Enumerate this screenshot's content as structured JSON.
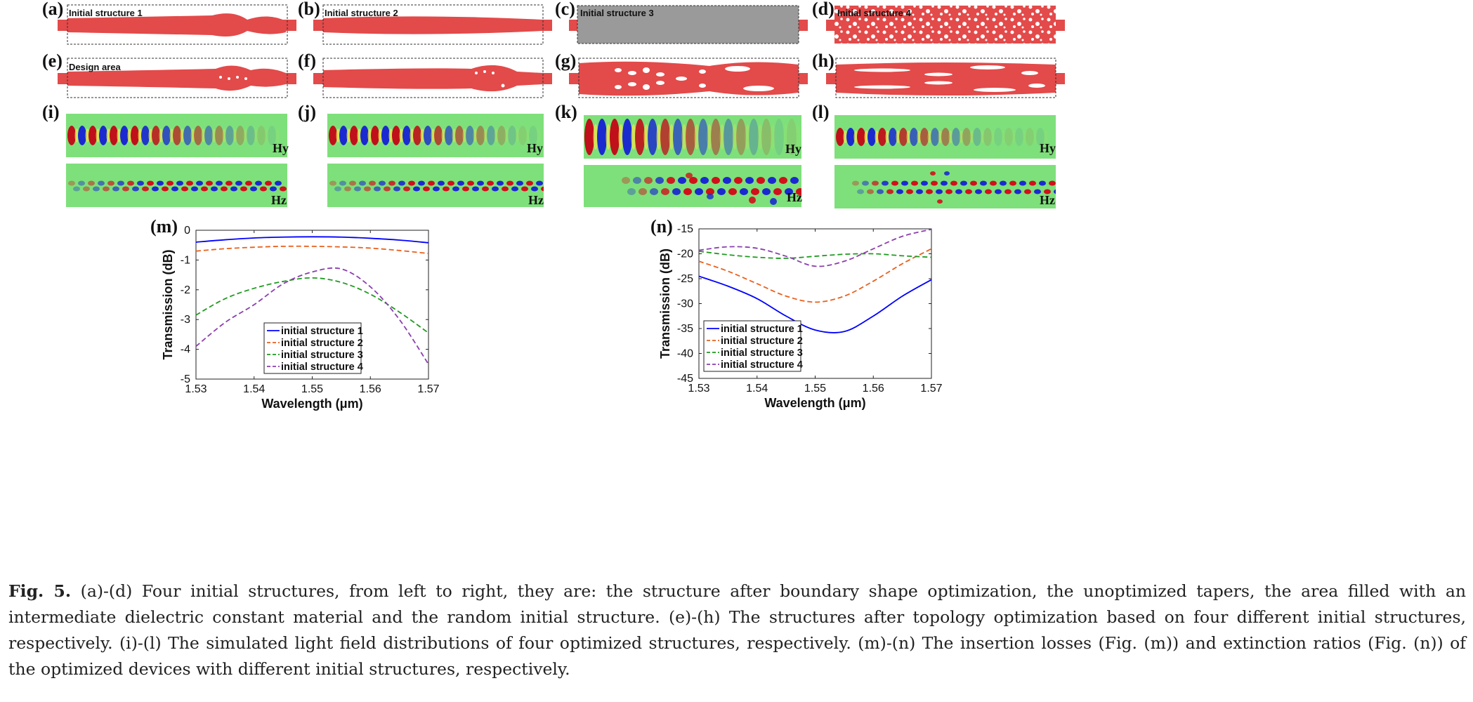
{
  "panels": {
    "a": "(a)",
    "b": "(b)",
    "c": "(c)",
    "d": "(d)",
    "e": "(e)",
    "f": "(f)",
    "g": "(g)",
    "h": "(h)",
    "i": "(i)",
    "j": "(j)",
    "k": "(k)",
    "l": "(l)",
    "m": "(m)",
    "n": "(n)"
  },
  "box_labels": {
    "s1": "Initial structure 1",
    "s2": "Initial structure 2",
    "s3": "Initial structure 3",
    "s4": "Initial structure 4",
    "design": "Design area"
  },
  "field_labels": {
    "hy": "Hy",
    "hz": "Hz"
  },
  "colors": {
    "structure": "#e34a4a",
    "gray_fill": "#9a9a9a",
    "field_bg": "#7ee07a",
    "s1": "#0000ff",
    "s2": "#e8601c",
    "s3": "#1f9a1f",
    "s4": "#8b3fae"
  },
  "chart_data": [
    {
      "type": "line",
      "panel": "(m)",
      "xlabel": "Wavelength (μm)",
      "ylabel": "Transmission (dB)",
      "xlim": [
        1.53,
        1.57
      ],
      "ylim": [
        -5,
        0
      ],
      "xticks": [
        "1.53",
        "1.54",
        "1.55",
        "1.56",
        "1.57"
      ],
      "yticks": [
        "0",
        "-1",
        "-2",
        "-3",
        "-4",
        "-5"
      ],
      "legend": "bottom-center",
      "x": [
        1.53,
        1.535,
        1.54,
        1.545,
        1.55,
        1.555,
        1.56,
        1.565,
        1.57
      ],
      "series": [
        {
          "name": "initial structure 1",
          "style": "solid",
          "color": "#0000ff",
          "values": [
            -0.4,
            -0.32,
            -0.26,
            -0.23,
            -0.22,
            -0.23,
            -0.27,
            -0.33,
            -0.42
          ]
        },
        {
          "name": "initial structure 2",
          "style": "dashed",
          "color": "#e8601c",
          "values": [
            -0.7,
            -0.62,
            -0.57,
            -0.54,
            -0.54,
            -0.56,
            -0.6,
            -0.68,
            -0.78
          ]
        },
        {
          "name": "initial structure 3",
          "style": "dashed",
          "color": "#1f9a1f",
          "values": [
            -2.85,
            -2.3,
            -1.95,
            -1.72,
            -1.6,
            -1.75,
            -2.15,
            -2.75,
            -3.45
          ]
        },
        {
          "name": "initial structure 4",
          "style": "dashed",
          "color": "#8b3fae",
          "values": [
            -3.9,
            -3.1,
            -2.5,
            -1.8,
            -1.4,
            -1.3,
            -1.9,
            -3.0,
            -4.5
          ]
        }
      ]
    },
    {
      "type": "line",
      "panel": "(n)",
      "xlabel": "Wavelength (μm)",
      "ylabel": "Transmission (dB)",
      "xlim": [
        1.53,
        1.57
      ],
      "ylim": [
        -45,
        -15
      ],
      "xticks": [
        "1.53",
        "1.54",
        "1.55",
        "1.56",
        "1.57"
      ],
      "yticks": [
        "-15",
        "-20",
        "-25",
        "-30",
        "-35",
        "-40",
        "-45"
      ],
      "legend": "bottom-left",
      "x": [
        1.53,
        1.535,
        1.54,
        1.545,
        1.55,
        1.555,
        1.56,
        1.565,
        1.57
      ],
      "series": [
        {
          "name": "initial structure 1",
          "style": "solid",
          "color": "#0000ff",
          "values": [
            -24.5,
            -26.5,
            -29.0,
            -32.5,
            -35.3,
            -35.6,
            -32.5,
            -28.5,
            -25.2
          ]
        },
        {
          "name": "initial structure 2",
          "style": "dashed",
          "color": "#e8601c",
          "values": [
            -21.5,
            -23.5,
            -26.0,
            -28.5,
            -29.7,
            -28.5,
            -25.5,
            -22.0,
            -19.0
          ]
        },
        {
          "name": "initial structure 3",
          "style": "dashed",
          "color": "#1f9a1f",
          "values": [
            -19.5,
            -20.2,
            -20.7,
            -20.9,
            -20.5,
            -20.1,
            -20.0,
            -20.4,
            -20.7
          ]
        },
        {
          "name": "initial structure 4",
          "style": "dashed",
          "color": "#8b3fae",
          "values": [
            -19.3,
            -18.6,
            -18.9,
            -20.5,
            -22.5,
            -21.5,
            -19.0,
            -16.5,
            -15.1
          ]
        }
      ]
    }
  ],
  "caption": {
    "fig": "Fig. 5.",
    "text": " (a)-(d) Four initial structures, from left to right, they are: the structure after boundary shape optimization, the unoptimized tapers, the area filled with an intermediate dielectric constant material and the random initial structure. (e)-(h) The structures after topology optimization based on four different initial structures, respectively. (i)-(l) The simulated light field distributions of four optimized structures, respectively. (m)-(n) The insertion losses (Fig. (m)) and extinction ratios (Fig. (n)) of the optimized devices with different initial structures, respectively."
  }
}
